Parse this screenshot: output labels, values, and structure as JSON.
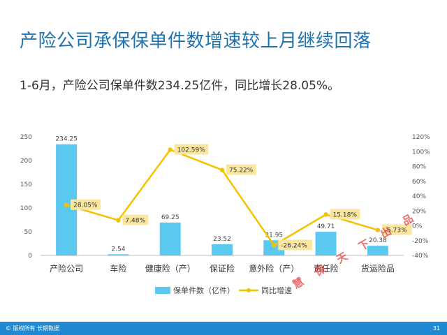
{
  "title": "产险公司承保保单件数增速较上月继续回落",
  "subtitle": "1-6月，产险公司保单件数234.25亿件，同比增长28.05%。",
  "footer": {
    "copyright": "© 版权所有 长期数据",
    "page": "31"
  },
  "watermark": "慧 保 天 下 出 品",
  "colors": {
    "bar": "#5bc8f0",
    "line": "#f5c200",
    "label_bg": "#fbe6a0",
    "title": "#1f73ad"
  },
  "chart_data": {
    "type": "bar",
    "categories": [
      "产险公司",
      "车险",
      "健康险（产）",
      "保证险",
      "意外险（产）",
      "责任险",
      "货运险品"
    ],
    "series": [
      {
        "name": "保单件数（亿件）",
        "type": "bar",
        "axis": "left",
        "values": [
          234.25,
          2.54,
          69.25,
          23.52,
          31.95,
          49.71,
          20.38
        ],
        "labels": [
          "234.25",
          "2.54",
          "69.25",
          "23.52",
          "31.95",
          "49.71",
          "20.38"
        ]
      },
      {
        "name": "同比增速",
        "type": "line",
        "axis": "right",
        "values": [
          28.05,
          7.48,
          102.59,
          75.22,
          -26.24,
          15.18,
          -5.73
        ],
        "labels": [
          "28.05%",
          "7.48%",
          "102.59%",
          "75.22%",
          "-26.24%",
          "15.18%",
          "-5.73%"
        ]
      }
    ],
    "y_left": {
      "ylim": [
        0,
        250
      ],
      "ticks": [
        "0",
        "50",
        "100",
        "150",
        "200",
        "250"
      ]
    },
    "y_right": {
      "ylim": [
        -40,
        120
      ],
      "ticks": [
        "-40%",
        "-20%",
        "0%",
        "20%",
        "40%",
        "60%",
        "80%",
        "100%",
        "120%"
      ]
    },
    "legend_position": "bottom",
    "grid": false
  }
}
